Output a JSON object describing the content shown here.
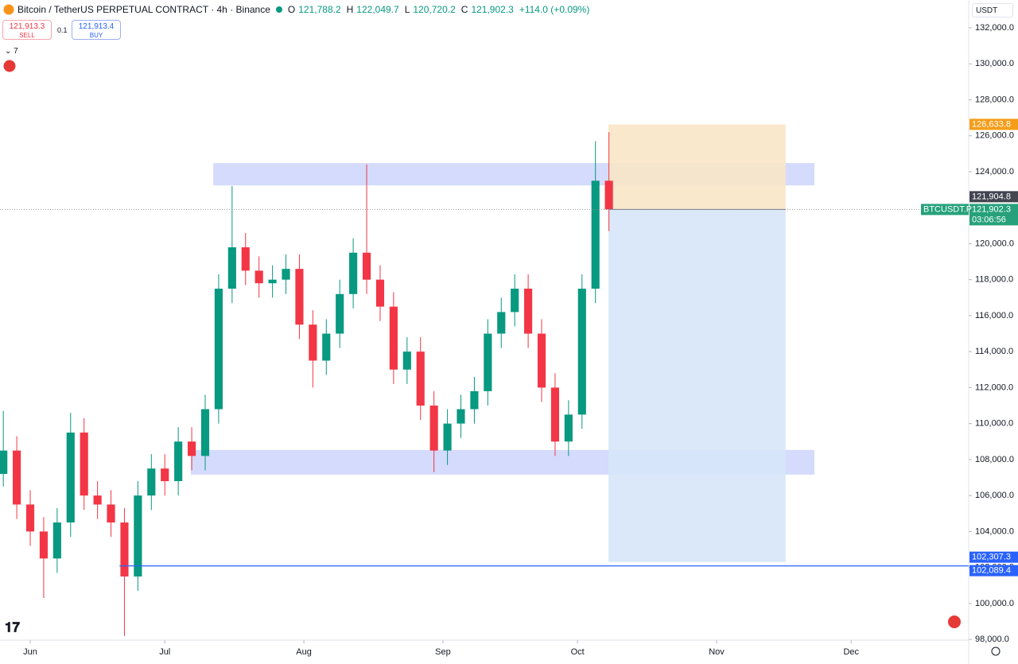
{
  "header": {
    "symbol": "Bitcoin / TetherUS PERPETUAL CONTRACT · 4h · Binance",
    "ohlc": [
      {
        "key": "O",
        "value": "121,788.2"
      },
      {
        "key": "H",
        "value": "122,049.7"
      },
      {
        "key": "L",
        "value": "120,720.2"
      },
      {
        "key": "C",
        "value": "121,902.3"
      }
    ],
    "change": "+114.0 (+0.09%)",
    "sell": {
      "price": "121,913.3",
      "label": "SELL"
    },
    "spread": "0.1",
    "buy": {
      "price": "121,913.4",
      "label": "BUY"
    },
    "indicators_count": "7",
    "currency": "USDT"
  },
  "chart_data": {
    "type": "candlestick",
    "x": [
      -6,
      -3,
      0,
      3,
      6,
      9,
      12,
      15,
      18,
      21,
      24,
      27,
      30,
      33,
      36,
      39,
      42,
      45,
      48,
      51,
      54,
      57,
      60,
      63,
      66,
      69,
      72,
      75,
      78,
      81,
      84,
      87,
      90,
      93,
      96,
      99,
      102,
      105,
      108,
      111,
      114,
      117,
      120,
      123,
      126,
      129
    ],
    "open": [
      107200,
      108500,
      105500,
      104000,
      102500,
      104500,
      109500,
      106000,
      105500,
      104500,
      101500,
      106000,
      107500,
      106800,
      109000,
      108200,
      110800,
      117500,
      119800,
      118500,
      117800,
      118000,
      118600,
      115500,
      113500,
      115000,
      117200,
      119500,
      118000,
      116500,
      113000,
      114000,
      111000,
      108500,
      110000,
      110800,
      111800,
      115000,
      116200,
      117500,
      115000,
      112000,
      109000,
      110500,
      117500,
      123500
    ],
    "high": [
      110700,
      109300,
      106300,
      104800,
      105300,
      110600,
      110300,
      106800,
      106300,
      105300,
      106800,
      108300,
      108300,
      109800,
      109800,
      111600,
      118300,
      123200,
      120600,
      119300,
      118800,
      119400,
      119400,
      116300,
      115800,
      118000,
      120300,
      124400,
      118800,
      117300,
      114800,
      114800,
      111800,
      110800,
      111600,
      112600,
      115800,
      117000,
      118300,
      118300,
      115800,
      112800,
      111300,
      118300,
      125700,
      126200
    ],
    "low": [
      106500,
      104700,
      103200,
      100300,
      101700,
      103700,
      105200,
      104700,
      103700,
      98200,
      100700,
      105200,
      106000,
      106000,
      107400,
      107400,
      110000,
      116700,
      117700,
      117000,
      117000,
      117200,
      114700,
      112000,
      112700,
      114200,
      116400,
      117200,
      115700,
      112200,
      112200,
      110200,
      107300,
      107700,
      109200,
      110000,
      111000,
      114200,
      115400,
      114200,
      111200,
      108200,
      108200,
      109700,
      116700,
      120700
    ],
    "close": [
      108500,
      105500,
      104000,
      102500,
      104500,
      109500,
      106000,
      105500,
      104500,
      101500,
      106000,
      107500,
      106800,
      109000,
      108200,
      110800,
      117500,
      119800,
      118500,
      117800,
      118000,
      118600,
      115500,
      113500,
      115000,
      117200,
      119500,
      118000,
      116500,
      113000,
      114000,
      111000,
      108500,
      110000,
      110800,
      111800,
      115000,
      116200,
      117500,
      115000,
      112000,
      109000,
      110500,
      117500,
      123500,
      121900
    ],
    "up_color": "#089981",
    "down_color": "#f23645",
    "xlim": [
      -6.74,
      209.2
    ],
    "ylim": [
      97960,
      133547
    ],
    "xticks": [
      {
        "value": 0,
        "label": "Jun"
      },
      {
        "value": 30,
        "label": "Jul"
      },
      {
        "value": 61,
        "label": "Aug"
      },
      {
        "value": 92,
        "label": "Sep"
      },
      {
        "value": 122,
        "label": "Oct"
      },
      {
        "value": 153,
        "label": "Nov"
      },
      {
        "value": 183,
        "label": "Dec"
      }
    ],
    "yticks": [
      {
        "value": 98000,
        "label": "98,000.0"
      },
      {
        "value": 100000,
        "label": "100,000.0"
      },
      {
        "value": 102000,
        "label": "102,000.0"
      },
      {
        "value": 104000,
        "label": "104,000.0"
      },
      {
        "value": 106000,
        "label": "106,000.0"
      },
      {
        "value": 108000,
        "label": "108,000.0"
      },
      {
        "value": 110000,
        "label": "110,000.0"
      },
      {
        "value": 112000,
        "label": "112,000.0"
      },
      {
        "value": 114000,
        "label": "114,000.0"
      },
      {
        "value": 116000,
        "label": "116,000.0"
      },
      {
        "value": 118000,
        "label": "118,000.0"
      },
      {
        "value": 120000,
        "label": "120,000.0"
      },
      {
        "value": 122000,
        "label": "122,000.0"
      },
      {
        "value": 124000,
        "label": "124,000.0"
      },
      {
        "value": 126000,
        "label": "126,000.0"
      },
      {
        "value": 128000,
        "label": "128,000.0"
      },
      {
        "value": 130000,
        "label": "130,000.0"
      },
      {
        "value": 132000,
        "label": "132,000.0"
      }
    ],
    "zones": [
      {
        "x": [
          40.8,
          174.8
        ],
        "y": [
          123240,
          124480
        ]
      },
      {
        "x": [
          35.8,
          174.8
        ],
        "y": [
          107160,
          108530
        ]
      }
    ],
    "zone_color": "#cdd5fb",
    "position": {
      "x": [
        128.9,
        168.4
      ],
      "entry": {
        "value": 121904.8,
        "label": "121,904.8"
      },
      "stop": {
        "value": 126633.8,
        "label": "126,633.8"
      },
      "target": {
        "value": 102307.3,
        "label": "102,307.3"
      },
      "stop_color": "#f9e6c8",
      "target_color": "#d6e6f8"
    },
    "hline": {
      "x_start": 19.9,
      "value": 102089.4,
      "label": "102,089.4",
      "color": "#2962ff"
    },
    "last_price": {
      "value": 121902.3,
      "label": "121,902.3",
      "symbol": "BTCUSDT.P",
      "countdown": "03:06:56",
      "color": "#26a17b"
    }
  }
}
